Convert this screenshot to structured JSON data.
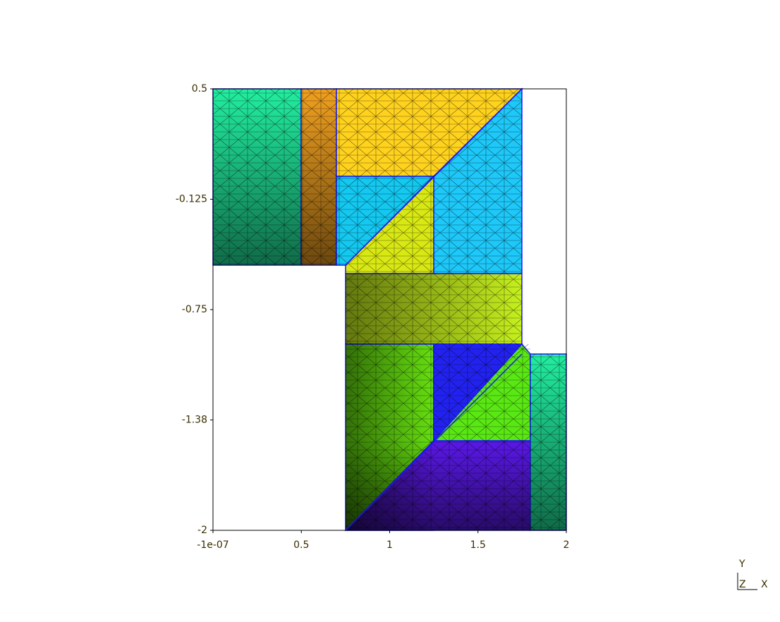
{
  "chart_data": {
    "type": "mesh",
    "xlim": [
      -1e-07,
      2
    ],
    "ylim": [
      -2,
      0.5
    ],
    "xticks": [
      {
        "value": -1e-07,
        "label": "-1e-07"
      },
      0.5,
      1,
      1.5,
      2
    ],
    "yticks": [
      0.5,
      -0.125,
      -0.75,
      {
        "value": -1.375,
        "label": "-1.38"
      },
      -2
    ],
    "axes_triad": {
      "y": "Y",
      "z": "Z",
      "x": "X"
    }
  }
}
